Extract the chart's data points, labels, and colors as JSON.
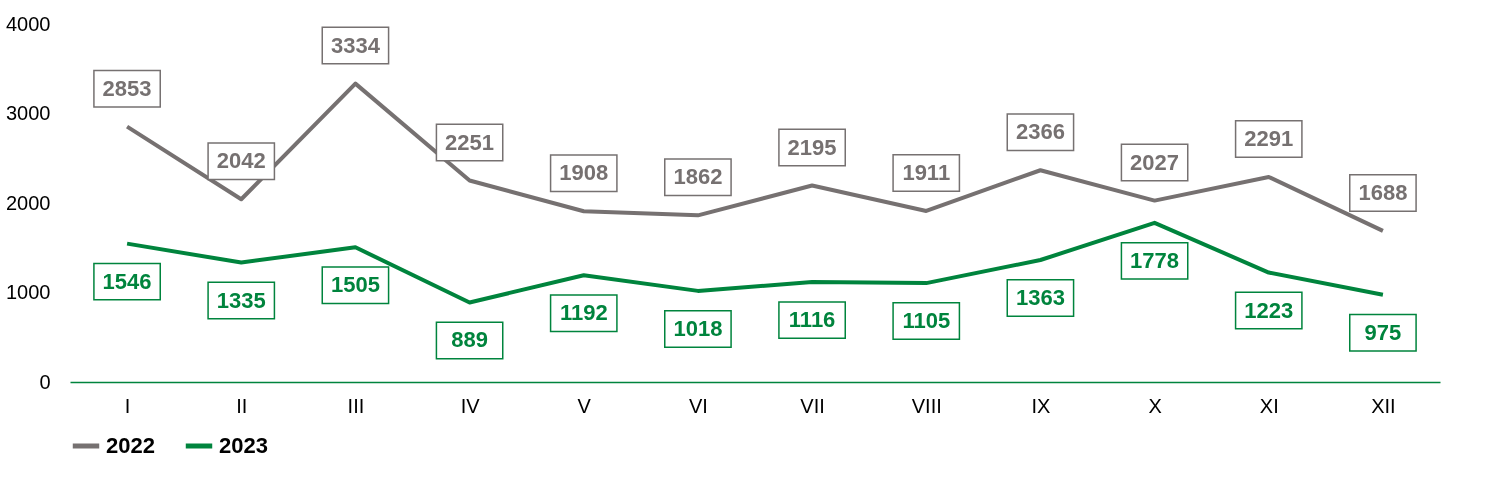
{
  "chart_data": {
    "type": "line",
    "categories": [
      "I",
      "II",
      "III",
      "IV",
      "V",
      "VI",
      "VII",
      "VIII",
      "IX",
      "X",
      "XI",
      "XII"
    ],
    "series": [
      {
        "name": "2022",
        "color": "#767171",
        "values": [
          2853,
          2042,
          3334,
          2251,
          1908,
          1862,
          2195,
          1911,
          2366,
          2027,
          2291,
          1688
        ]
      },
      {
        "name": "2023",
        "color": "#00843d",
        "values": [
          1546,
          1335,
          1505,
          889,
          1192,
          1018,
          1116,
          1105,
          1363,
          1778,
          1223,
          975
        ]
      }
    ],
    "ylim": [
      0,
      4000
    ],
    "yticks": [
      0,
      1000,
      2000,
      3000,
      4000
    ],
    "grid": false,
    "legend": "bottom",
    "data_labels": true,
    "marker": "none",
    "line_style": "solid"
  }
}
